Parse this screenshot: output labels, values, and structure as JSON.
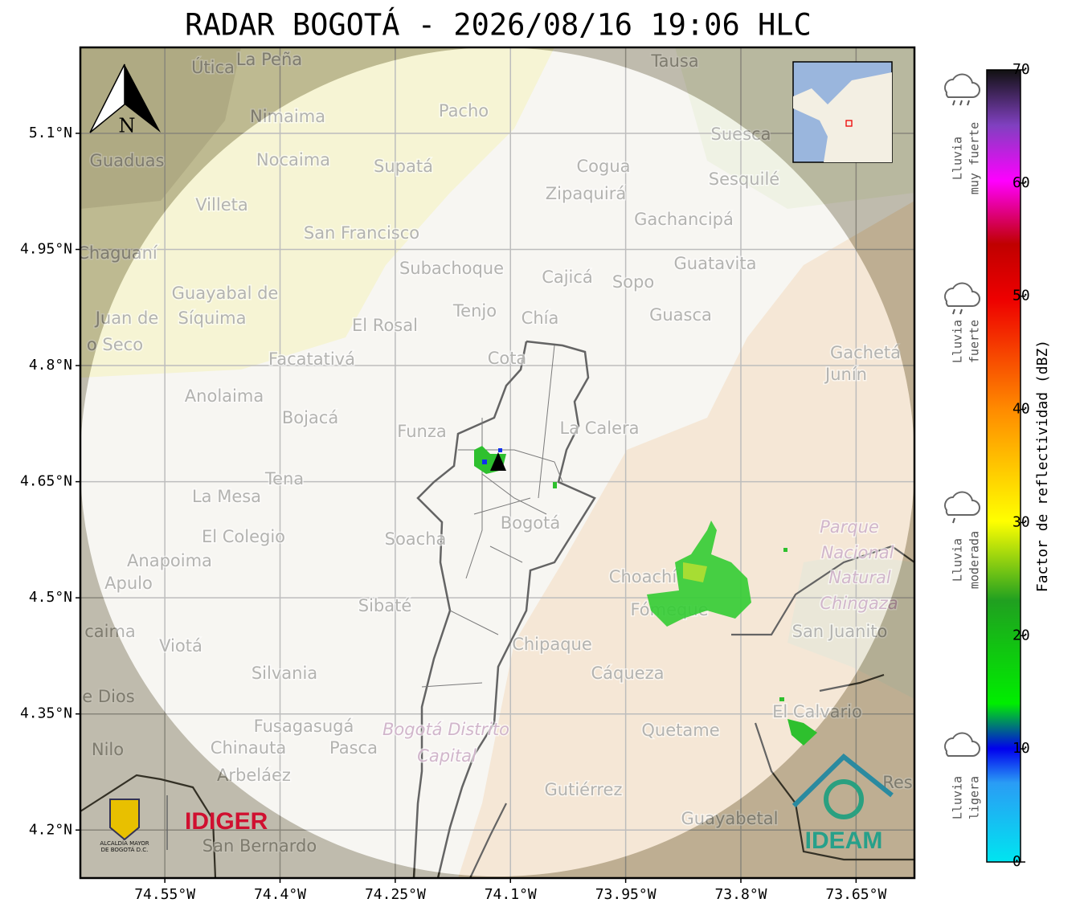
{
  "title": "RADAR BOGOTÁ - 2026/08/16 19:06 HLC",
  "map": {
    "latlim": [
      4.138,
      5.211
    ],
    "lonlim": [
      -74.66,
      -73.574
    ],
    "lat_ticks": [
      {
        "value": 5.1,
        "label": "5.1°N"
      },
      {
        "value": 4.95,
        "label": "4.95°N"
      },
      {
        "value": 4.8,
        "label": "4.8°N"
      },
      {
        "value": 4.65,
        "label": "4.65°N"
      },
      {
        "value": 4.5,
        "label": "4.5°N"
      },
      {
        "value": 4.35,
        "label": "4.35°N"
      },
      {
        "value": 4.2,
        "label": "4.2°N"
      }
    ],
    "lon_ticks": [
      {
        "value": -74.55,
        "label": "74.55°W"
      },
      {
        "value": -74.4,
        "label": "74.4°W"
      },
      {
        "value": -74.25,
        "label": "74.25°W"
      },
      {
        "value": -74.1,
        "label": "74.1°W"
      },
      {
        "value": -73.95,
        "label": "73.95°W"
      },
      {
        "value": -73.8,
        "label": "73.8°W"
      },
      {
        "value": -73.65,
        "label": "73.65°W"
      }
    ],
    "north": "N",
    "places": [
      "Útica",
      "La Peña",
      "Tausa",
      "Pacho",
      "Nimaima",
      "Suesca",
      "Guaduas",
      "Nocaima",
      "Supatá",
      "Cogua",
      "Sesquilé",
      "Zipaquirá",
      "Villeta",
      "Gachancipá",
      "San Francisco",
      "Chaguaní",
      "Guatavita",
      "Subachoque",
      "Cajicá",
      "Sopo",
      "Guayabal de",
      "Síquima",
      "Tenjo",
      "Juan de",
      "Chía",
      "Guasca",
      "El Rosal",
      "o Seco",
      "Gachetá",
      "Cota",
      "Facatativá",
      "Junín",
      "Anolaima",
      "Bojacá",
      "La Calera",
      "Funza",
      "Tena",
      "La Mesa",
      "Bogotá",
      "El Colegio",
      "Soacha",
      "Anapoima",
      "Choachí",
      "Apulo",
      "Sibaté",
      "Fómeque",
      "San Juanito",
      "caima",
      "Chipaque",
      "Viotá",
      "Silvania",
      "Cáqueza",
      "e Dios",
      "El Calvario",
      "Fusagasugá",
      "Quetame",
      "Nilo",
      "Chinauta",
      "Pasca",
      "Arbeláez",
      "Gutiérrez",
      "Res",
      "Guayabetal",
      "San Bernardo"
    ],
    "parks": [
      "Parque",
      "Nacional",
      "Natural",
      "Chingaza",
      "Bogotá Distrito",
      "Capital"
    ]
  },
  "colorbar": {
    "label": "Factor de reflectividad (dBZ)",
    "lim": [
      0,
      70
    ],
    "ticks": [
      0,
      10,
      20,
      30,
      40,
      50,
      60,
      70
    ]
  },
  "legend": [
    [
      "Lluvia",
      "muy fuerte"
    ],
    [
      "Lluvia",
      "fuerte"
    ],
    [
      "Lluvia",
      "moderada"
    ],
    [
      "Lluvia",
      "ligera"
    ]
  ],
  "logos": {
    "alcaldia": [
      "ALCALDÍA MAYOR",
      "DE BOGOTÁ D.C."
    ],
    "idiger": "IDIGER",
    "ideam": "IDEAM"
  }
}
